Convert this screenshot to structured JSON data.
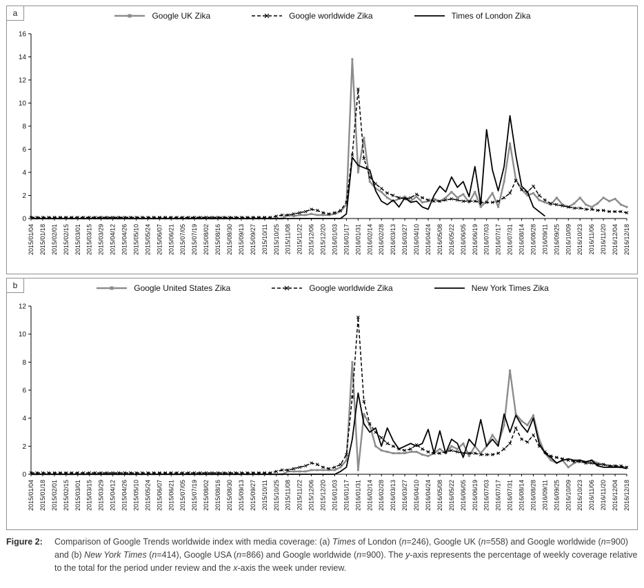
{
  "figure": {
    "caption_label": "Figure 2:",
    "caption_segments": [
      {
        "t": "Comparison of Google Trends worldwide index with media coverage: (a) "
      },
      {
        "t": "Times",
        "i": true
      },
      {
        "t": " of London ("
      },
      {
        "t": "n",
        "i": true
      },
      {
        "t": "=246), Google UK ("
      },
      {
        "t": "n",
        "i": true
      },
      {
        "t": "=558) and Google worldwide ("
      },
      {
        "t": "n",
        "i": true
      },
      {
        "t": "=900) and (b) "
      },
      {
        "t": "New York Times",
        "i": true
      },
      {
        "t": " ("
      },
      {
        "t": "n",
        "i": true
      },
      {
        "t": "=414), Google USA ("
      },
      {
        "t": "n",
        "i": true
      },
      {
        "t": "=866) and Google worldwide ("
      },
      {
        "t": "n",
        "i": true
      },
      {
        "t": "=900). The "
      },
      {
        "t": "y",
        "i": true
      },
      {
        "t": "-axis represents the percentage of weekly coverage relative to the total for the period under review and the "
      },
      {
        "t": "x",
        "i": true
      },
      {
        "t": "-axis the week under review."
      }
    ]
  },
  "chart_data": [
    {
      "type": "line",
      "panel": "a",
      "title": "",
      "xlabel": "",
      "ylabel": "",
      "ylim": [
        0,
        16
      ],
      "yticks": [
        0,
        2,
        4,
        6,
        8,
        10,
        12,
        14,
        16
      ],
      "xtick_every": 2,
      "grid": false,
      "legend_position": "top-center",
      "x": [
        "2015/01/04",
        "2015/01/11",
        "2015/01/18",
        "2015/01/25",
        "2015/02/01",
        "2015/02/08",
        "2015/02/15",
        "2015/02/22",
        "2015/03/01",
        "2015/03/08",
        "2015/03/15",
        "2015/03/22",
        "2015/03/29",
        "2015/04/05",
        "2015/04/12",
        "2015/04/19",
        "2015/04/26",
        "2015/05/03",
        "2015/05/10",
        "2015/05/17",
        "2015/05/24",
        "2015/05/31",
        "2015/06/07",
        "2015/06/14",
        "2015/06/21",
        "2015/06/28",
        "2015/07/05",
        "2015/07/12",
        "2015/07/19",
        "2015/07/26",
        "2015/08/02",
        "2015/08/09",
        "2015/08/16",
        "2015/08/23",
        "2015/08/30",
        "2015/09/06",
        "2015/09/13",
        "2015/09/20",
        "2015/09/27",
        "2015/10/04",
        "2015/10/11",
        "2015/10/18",
        "2015/10/25",
        "2015/11/01",
        "2015/11/08",
        "2015/11/15",
        "2015/11/22",
        "2015/11/29",
        "2015/12/06",
        "2015/12/13",
        "2015/12/20",
        "2015/12/27",
        "2016/01/03",
        "2016/01/10",
        "2016/01/17",
        "2016/01/24",
        "2016/01/31",
        "2016/02/07",
        "2016/02/14",
        "2016/02/21",
        "2016/02/28",
        "2016/03/06",
        "2016/03/13",
        "2016/03/20",
        "2016/03/27",
        "2016/04/03",
        "2016/04/10",
        "2016/04/17",
        "2016/04/24",
        "2016/05/01",
        "2016/05/08",
        "2016/05/15",
        "2016/05/22",
        "2016/05/29",
        "2016/06/05",
        "2016/06/12",
        "2016/06/19",
        "2016/06/26",
        "2016/07/03",
        "2016/07/10",
        "2016/07/17",
        "2016/07/24",
        "2016/07/31",
        "2016/08/07",
        "2016/08/14",
        "2016/08/21",
        "2016/08/28",
        "2016/09/04",
        "2016/09/11",
        "2016/09/18",
        "2016/09/25",
        "2016/10/02",
        "2016/10/09",
        "2016/10/16",
        "2016/10/23",
        "2016/10/30",
        "2016/11/06",
        "2016/11/13",
        "2016/11/20",
        "2016/11/27",
        "2016/12/04",
        "2016/12/11",
        "2016/12/18"
      ],
      "series": [
        {
          "name": "Google UK Zika",
          "color": "#8c8c8c",
          "width": 2.4,
          "dash": "",
          "marker": "square",
          "values": [
            0,
            0,
            0,
            0,
            0,
            0,
            0,
            0,
            0,
            0,
            0,
            0,
            0,
            0,
            0,
            0,
            0,
            0,
            0,
            0,
            0,
            0,
            0,
            0,
            0,
            0,
            0,
            0,
            0,
            0,
            0,
            0,
            0,
            0,
            0,
            0,
            0,
            0,
            0,
            0,
            0,
            0,
            0,
            0,
            0.3,
            0.2,
            0.3,
            0.3,
            0.4,
            0.3,
            0.3,
            0.3,
            0.4,
            0.6,
            1.2,
            13.8,
            4.0,
            7.0,
            3.2,
            2.6,
            2.3,
            1.8,
            1.5,
            1.7,
            1.9,
            1.5,
            1.9,
            1.4,
            1.5,
            1.7,
            1.5,
            1.8,
            2.3,
            1.8,
            2.1,
            1.4,
            2.3,
            1.0,
            1.5,
            2.2,
            1.0,
            3.2,
            6.5,
            3.4,
            2.5,
            2.0,
            2.2,
            1.6,
            1.4,
            1.2,
            1.8,
            1.2,
            1.0,
            1.3,
            1.8,
            1.2,
            1.0,
            1.3,
            1.8,
            1.5,
            1.7,
            1.2,
            1.0
          ]
        },
        {
          "name": "Google worldwide Zika",
          "color": "#000000",
          "width": 1.5,
          "dash": "5,3",
          "marker": "x",
          "values": [
            0.1,
            0.1,
            0.1,
            0.1,
            0.1,
            0.1,
            0.1,
            0.1,
            0.1,
            0.1,
            0.1,
            0.1,
            0.1,
            0.1,
            0.1,
            0.1,
            0.1,
            0.1,
            0.1,
            0.1,
            0.1,
            0.1,
            0.1,
            0.1,
            0.1,
            0.1,
            0.1,
            0.1,
            0.1,
            0.1,
            0.1,
            0.1,
            0.1,
            0.1,
            0.1,
            0.1,
            0.1,
            0.1,
            0.1,
            0.1,
            0.1,
            0.1,
            0.2,
            0.3,
            0.3,
            0.4,
            0.5,
            0.6,
            0.8,
            0.7,
            0.5,
            0.4,
            0.5,
            0.7,
            1.4,
            5.5,
            11.2,
            5.2,
            3.6,
            3.0,
            2.6,
            2.2,
            2.0,
            1.8,
            1.7,
            1.8,
            2.1,
            1.8,
            1.6,
            1.5,
            1.5,
            1.6,
            1.7,
            1.6,
            1.5,
            1.5,
            1.5,
            1.4,
            1.4,
            1.4,
            1.5,
            1.8,
            2.2,
            3.3,
            2.5,
            2.3,
            2.8,
            2.0,
            1.6,
            1.3,
            1.2,
            1.1,
            1.0,
            0.9,
            0.9,
            0.8,
            0.8,
            0.7,
            0.7,
            0.6,
            0.6,
            0.6,
            0.5
          ]
        },
        {
          "name": "Times of London Zika",
          "color": "#000000",
          "width": 1.8,
          "dash": "",
          "marker": "",
          "values": [
            0,
            0,
            0,
            0,
            0,
            0,
            0,
            0,
            0,
            0,
            0,
            0,
            0,
            0,
            0,
            0,
            0,
            0,
            0,
            0,
            0,
            0,
            0,
            0,
            0,
            0,
            0,
            0,
            0,
            0,
            0,
            0,
            0,
            0,
            0,
            0,
            0,
            0,
            0,
            0,
            0,
            0,
            0,
            0,
            0,
            0,
            0,
            0,
            0,
            0,
            0,
            0,
            0,
            0,
            0.4,
            5.3,
            4.6,
            4.4,
            4.2,
            2.4,
            1.5,
            1.2,
            1.6,
            1.0,
            1.8,
            1.4,
            1.5,
            1.0,
            0.8,
            2.0,
            2.8,
            2.3,
            3.6,
            2.7,
            3.2,
            1.9,
            4.5,
            1.2,
            7.7,
            4.2,
            2.4,
            4.5,
            8.9,
            5.5,
            2.8,
            2.3,
            1.0,
            0.6,
            0.2,
            null,
            null,
            null,
            null,
            null,
            null,
            null,
            null,
            null,
            null,
            null,
            null,
            null,
            null
          ]
        }
      ]
    },
    {
      "type": "line",
      "panel": "b",
      "title": "",
      "xlabel": "",
      "ylabel": "",
      "ylim": [
        0,
        12
      ],
      "yticks": [
        0,
        2,
        4,
        6,
        8,
        10,
        12
      ],
      "xtick_every": 2,
      "grid": false,
      "legend_position": "top-center",
      "x": [
        "2015/01/04",
        "2015/01/11",
        "2015/01/18",
        "2015/01/25",
        "2015/02/01",
        "2015/02/08",
        "2015/02/15",
        "2015/02/22",
        "2015/03/01",
        "2015/03/08",
        "2015/03/15",
        "2015/03/22",
        "2015/03/29",
        "2015/04/05",
        "2015/04/12",
        "2015/04/19",
        "2015/04/26",
        "2015/05/03",
        "2015/05/10",
        "2015/05/17",
        "2015/05/24",
        "2015/05/31",
        "2015/06/07",
        "2015/06/14",
        "2015/06/21",
        "2015/06/28",
        "2015/07/05",
        "2015/07/12",
        "2015/07/19",
        "2015/07/26",
        "2015/08/02",
        "2015/08/09",
        "2015/08/16",
        "2015/08/23",
        "2015/08/30",
        "2015/09/06",
        "2015/09/13",
        "2015/09/20",
        "2015/09/27",
        "2015/10/04",
        "2015/10/11",
        "2015/10/18",
        "2015/10/25",
        "2015/11/01",
        "2015/11/08",
        "2015/11/15",
        "2015/11/22",
        "2015/11/29",
        "2015/12/06",
        "2015/12/13",
        "2015/12/20",
        "2015/12/27",
        "2016/01/03",
        "2016/01/10",
        "2016/01/17",
        "2016/01/24",
        "2016/01/31",
        "2016/02/07",
        "2016/02/14",
        "2016/02/21",
        "2016/02/28",
        "2016/03/06",
        "2016/03/13",
        "2016/03/20",
        "2016/03/27",
        "2016/04/03",
        "2016/04/10",
        "2016/04/17",
        "2016/04/24",
        "2016/05/01",
        "2016/05/08",
        "2016/05/15",
        "2016/05/22",
        "2016/05/29",
        "2016/06/05",
        "2016/06/12",
        "2016/06/19",
        "2016/06/26",
        "2016/07/03",
        "2016/07/10",
        "2016/07/17",
        "2016/07/24",
        "2016/07/31",
        "2016/08/07",
        "2016/08/14",
        "2016/08/21",
        "2016/08/28",
        "2016/09/04",
        "2016/09/11",
        "2016/09/18",
        "2016/09/25",
        "2016/10/02",
        "2016/10/09",
        "2016/10/16",
        "2016/10/23",
        "2016/10/30",
        "2016/11/06",
        "2016/11/13",
        "2016/11/20",
        "2016/11/27",
        "2016/12/04",
        "2016/12/11",
        "2016/12/18"
      ],
      "series": [
        {
          "name": "Google United States Zika",
          "color": "#8c8c8c",
          "width": 2.4,
          "dash": "",
          "marker": "square",
          "values": [
            0,
            0,
            0,
            0,
            0,
            0,
            0,
            0,
            0,
            0,
            0,
            0,
            0,
            0,
            0,
            0,
            0,
            0,
            0,
            0,
            0,
            0,
            0,
            0,
            0,
            0,
            0,
            0,
            0,
            0,
            0,
            0,
            0,
            0,
            0,
            0,
            0,
            0,
            0,
            0,
            0,
            0,
            0,
            0,
            0.2,
            0.2,
            0.2,
            0.2,
            0.3,
            0.3,
            0.3,
            0.3,
            0.3,
            0.5,
            1.0,
            8.0,
            0.3,
            4.3,
            3.5,
            2.0,
            1.7,
            1.6,
            1.5,
            1.5,
            1.5,
            1.6,
            1.6,
            1.4,
            1.3,
            1.5,
            1.8,
            1.5,
            2.0,
            1.8,
            2.2,
            1.3,
            2.0,
            1.5,
            2.0,
            2.8,
            2.2,
            3.5,
            7.4,
            4.3,
            3.8,
            3.5,
            4.2,
            2.5,
            1.5,
            1.0,
            0.8,
            1.0,
            0.5,
            0.8,
            1.0,
            0.8,
            1.0,
            0.8,
            0.7,
            0.6,
            0.6,
            0.5,
            0.5
          ]
        },
        {
          "name": "Google worldwide Zika",
          "color": "#000000",
          "width": 1.5,
          "dash": "5,3",
          "marker": "x",
          "values": [
            0.1,
            0.1,
            0.1,
            0.1,
            0.1,
            0.1,
            0.1,
            0.1,
            0.1,
            0.1,
            0.1,
            0.1,
            0.1,
            0.1,
            0.1,
            0.1,
            0.1,
            0.1,
            0.1,
            0.1,
            0.1,
            0.1,
            0.1,
            0.1,
            0.1,
            0.1,
            0.1,
            0.1,
            0.1,
            0.1,
            0.1,
            0.1,
            0.1,
            0.1,
            0.1,
            0.1,
            0.1,
            0.1,
            0.1,
            0.1,
            0.1,
            0.1,
            0.2,
            0.3,
            0.3,
            0.4,
            0.5,
            0.6,
            0.8,
            0.7,
            0.5,
            0.4,
            0.5,
            0.7,
            1.4,
            5.5,
            11.2,
            5.2,
            3.6,
            3.0,
            2.6,
            2.2,
            2.0,
            1.8,
            1.7,
            1.8,
            2.1,
            1.8,
            1.6,
            1.5,
            1.5,
            1.6,
            1.7,
            1.6,
            1.5,
            1.5,
            1.5,
            1.4,
            1.4,
            1.4,
            1.5,
            1.8,
            2.2,
            3.3,
            2.5,
            2.3,
            2.8,
            2.0,
            1.6,
            1.3,
            1.2,
            1.1,
            1.0,
            0.9,
            0.9,
            0.8,
            0.8,
            0.7,
            0.7,
            0.6,
            0.6,
            0.6,
            0.5
          ]
        },
        {
          "name": "New York Times Zika",
          "color": "#000000",
          "width": 1.8,
          "dash": "",
          "marker": "",
          "values": [
            0,
            0,
            0,
            0,
            0,
            0,
            0,
            0,
            0,
            0,
            0,
            0,
            0,
            0,
            0,
            0,
            0,
            0,
            0,
            0,
            0,
            0,
            0,
            0,
            0,
            0,
            0,
            0,
            0,
            0,
            0,
            0,
            0,
            0,
            0,
            0,
            0,
            0,
            0,
            0,
            0,
            0,
            0,
            0,
            0,
            0,
            0,
            0,
            0,
            0,
            0,
            0,
            0,
            0.2,
            0.5,
            2.5,
            5.8,
            3.6,
            3.0,
            3.3,
            2.0,
            3.3,
            2.4,
            1.8,
            2.0,
            2.2,
            2.0,
            2.2,
            3.2,
            1.5,
            3.1,
            1.5,
            2.5,
            2.2,
            1.2,
            2.5,
            2.0,
            3.9,
            2.0,
            2.5,
            2.0,
            4.3,
            3.0,
            4.2,
            3.5,
            3.0,
            4.0,
            2.2,
            1.5,
            1.2,
            0.8,
            1.0,
            1.1,
            1.0,
            1.0,
            0.9,
            1.0,
            0.6,
            0.5,
            0.5,
            0.5,
            0.5,
            0.4
          ]
        }
      ]
    }
  ]
}
